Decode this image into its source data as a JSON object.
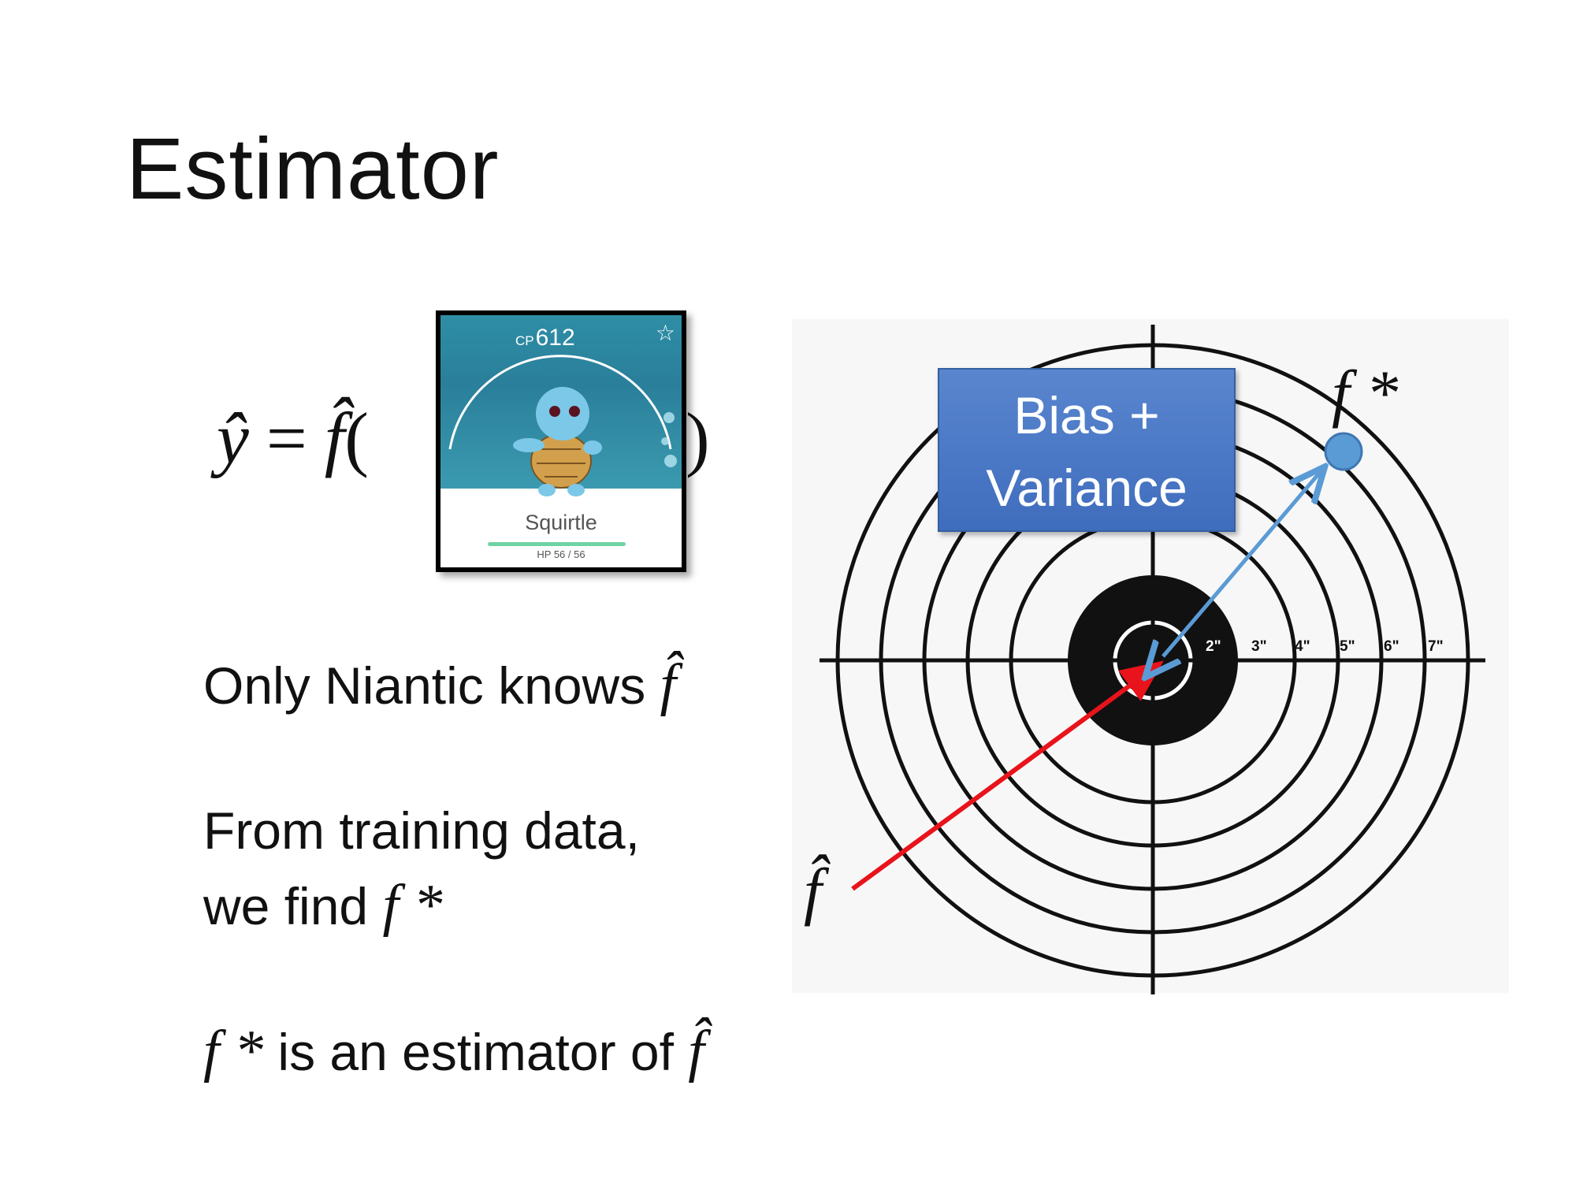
{
  "slide": {
    "title": "Estimator",
    "equation": {
      "lhs": "ŷ",
      "equals": "=",
      "func": "f̂",
      "open_paren": "(",
      "close_paren": ")"
    },
    "pokemon_card": {
      "cp_prefix": "CP",
      "cp_value": "612",
      "name": "Squirtle",
      "hp": "HP 56 / 56",
      "hp_fraction": 1.0
    },
    "lines": {
      "line1_text": "Only Niantic knows ",
      "line1_math": "f̂",
      "line2a": "From training data,",
      "line2b_text": "we find ",
      "line2b_math": "f *",
      "line3_math_a": "f *",
      "line3_text": " is an estimator of ",
      "line3_math_b": "f̂"
    },
    "target": {
      "ring_labels": [
        "2\"",
        "3\"",
        "4\"",
        "5\"",
        "6\"",
        "7\""
      ],
      "bias_variance_line1": "Bias +",
      "bias_variance_line2": "Variance",
      "label_fstar": "f *",
      "label_fhat": "f̂",
      "colors": {
        "fhat_arrow": "#e8131b",
        "fstar_arrow": "#5b9bd5",
        "fstar_point": "#5b9bd5",
        "box": "#4472c4"
      }
    }
  }
}
